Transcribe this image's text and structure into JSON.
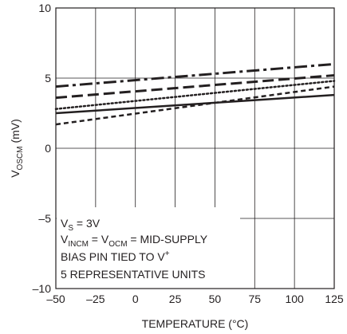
{
  "chart_data": {
    "type": "line",
    "xlabel": "TEMPERATURE (°C)",
    "ylabel_main": "V",
    "ylabel_sub": "OSCM",
    "ylabel_unit": " (mV)",
    "xlim": [
      -50,
      125
    ],
    "ylim": [
      -10,
      10
    ],
    "x_ticks": [
      -50,
      -25,
      0,
      25,
      50,
      75,
      100,
      125
    ],
    "x_tick_labels": [
      "–50",
      "–25",
      "0",
      "25",
      "50",
      "75",
      "100",
      "125"
    ],
    "y_ticks": [
      -10,
      -5,
      0,
      5,
      10
    ],
    "y_tick_labels": [
      "–10",
      "–5",
      "0",
      "5",
      "10"
    ],
    "grid": true,
    "series": [
      {
        "style": "dashdot",
        "x": [
          -50,
          125
        ],
        "y": [
          4.4,
          6.0
        ]
      },
      {
        "style": "dash",
        "x": [
          -50,
          125
        ],
        "y": [
          3.6,
          5.2
        ]
      },
      {
        "style": "dot",
        "x": [
          -50,
          125
        ],
        "y": [
          2.8,
          4.8
        ]
      },
      {
        "style": "solid",
        "x": [
          -50,
          125
        ],
        "y": [
          2.5,
          3.8
        ]
      },
      {
        "style": "shortdash",
        "x": [
          -50,
          125
        ],
        "y": [
          1.7,
          4.4
        ]
      }
    ],
    "annotation": {
      "line1_main": "V",
      "line1_sub": "S",
      "line1_rest": " = 3V",
      "line2_a": "V",
      "line2_a_sub": "INCM",
      "line2_b": " = V",
      "line2_b_sub": "OCM",
      "line2_c": " = MID-SUPPLY",
      "line3_main": "BIAS PIN TIED TO V",
      "line3_sup": "+",
      "line4": "5 REPRESENTATIVE UNITS"
    }
  }
}
